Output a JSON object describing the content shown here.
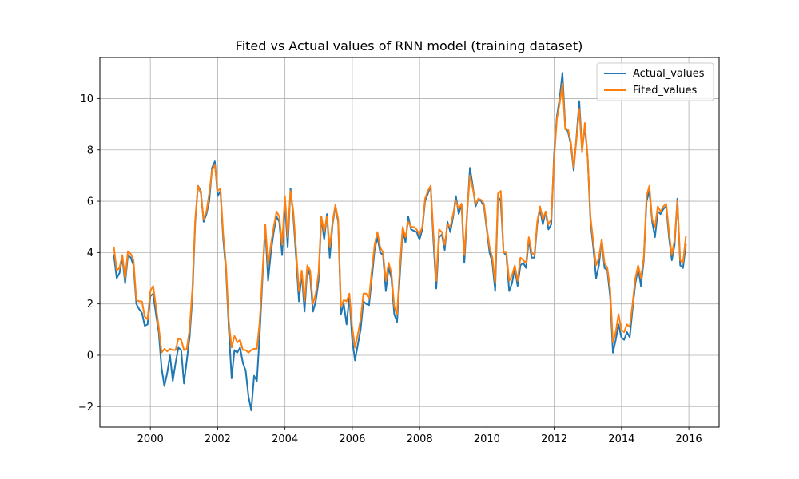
{
  "chart_data": {
    "type": "line",
    "title": "Fited vs Actual values of RNN model (training dataset)",
    "xlabel": "",
    "ylabel": "",
    "xlim": [
      1998.5,
      2016.9
    ],
    "ylim": [
      -2.8,
      11.6
    ],
    "x_ticks": [
      2000,
      2002,
      2004,
      2006,
      2008,
      2010,
      2012,
      2014,
      2016
    ],
    "x_tick_labels": [
      "2000",
      "2002",
      "2004",
      "2006",
      "2008",
      "2010",
      "2012",
      "2014",
      "2016"
    ],
    "y_ticks": [
      -2,
      0,
      2,
      4,
      6,
      8,
      10
    ],
    "y_tick_labels": [
      "−2",
      "0",
      "2",
      "4",
      "6",
      "8",
      "10"
    ],
    "grid": true,
    "legend_position": "top-right",
    "x_start": 1998.917,
    "x_step": 0.0833,
    "series": [
      {
        "name": "Actual_values",
        "color": "#1f77b4",
        "values": [
          3.9,
          3.0,
          3.2,
          3.8,
          2.8,
          3.9,
          3.8,
          3.5,
          2.0,
          1.8,
          1.65,
          1.15,
          1.2,
          2.3,
          2.4,
          1.6,
          0.9,
          -0.5,
          -1.2,
          -0.7,
          0.0,
          -1.0,
          -0.3,
          0.3,
          0.2,
          -1.1,
          -0.2,
          0.7,
          2.3,
          5.2,
          6.6,
          6.4,
          5.2,
          5.5,
          6.0,
          7.3,
          7.55,
          6.2,
          6.4,
          4.5,
          3.3,
          1.0,
          -0.9,
          0.2,
          0.1,
          0.3,
          -0.3,
          -0.6,
          -1.6,
          -2.15,
          -0.8,
          -1.0,
          0.8,
          3.0,
          5.0,
          2.9,
          4.0,
          4.8,
          5.4,
          5.2,
          3.9,
          6.0,
          4.2,
          6.5,
          5.4,
          3.8,
          2.1,
          3.2,
          1.7,
          3.4,
          3.1,
          1.7,
          2.1,
          2.9,
          5.4,
          4.5,
          5.5,
          3.8,
          5.1,
          5.8,
          5.2,
          1.6,
          2.0,
          1.2,
          2.3,
          0.6,
          -0.2,
          0.4,
          1.0,
          2.1,
          2.0,
          1.95,
          3.0,
          4.1,
          4.6,
          4.0,
          3.9,
          2.5,
          3.4,
          3.0,
          1.6,
          1.3,
          3.1,
          4.9,
          4.4,
          5.4,
          4.9,
          4.85,
          4.8,
          4.5,
          4.9,
          6.0,
          6.3,
          6.6,
          4.4,
          2.6,
          4.6,
          4.7,
          4.1,
          5.2,
          4.8,
          5.4,
          6.2,
          5.5,
          5.9,
          3.6,
          5.5,
          7.3,
          6.6,
          5.8,
          6.1,
          6.0,
          5.8,
          4.9,
          4.0,
          3.6,
          2.5,
          6.2,
          6.0,
          4.0,
          3.9,
          2.5,
          2.8,
          3.4,
          2.7,
          3.5,
          3.6,
          3.4,
          4.5,
          3.8,
          3.8,
          5.1,
          5.7,
          5.1,
          5.6,
          4.9,
          5.1,
          7.8,
          9.3,
          10.0,
          11.0,
          8.9,
          8.7,
          8.2,
          7.2,
          8.5,
          9.9,
          8.0,
          8.9,
          7.7,
          5.2,
          4.2,
          3.0,
          3.5,
          4.5,
          3.4,
          3.3,
          2.3,
          0.1,
          0.6,
          1.2,
          0.7,
          0.6,
          0.9,
          0.7,
          1.8,
          2.8,
          3.4,
          2.7,
          3.7,
          6.0,
          6.4,
          5.2,
          4.6,
          5.6,
          5.5,
          5.7,
          5.8,
          4.6,
          3.7,
          4.3,
          6.1,
          3.5,
          3.4,
          4.3
        ]
      },
      {
        "name": "Fited_values",
        "color": "#ff7f0e",
        "values": [
          4.2,
          3.3,
          3.4,
          3.9,
          3.0,
          4.05,
          3.95,
          3.7,
          2.15,
          2.1,
          2.1,
          1.5,
          1.4,
          2.5,
          2.7,
          1.9,
          1.1,
          0.1,
          0.25,
          0.15,
          0.25,
          0.2,
          0.2,
          0.65,
          0.6,
          0.2,
          0.25,
          1.0,
          2.6,
          5.3,
          6.6,
          6.3,
          5.3,
          5.6,
          6.3,
          7.2,
          7.4,
          6.4,
          6.5,
          4.7,
          3.5,
          1.3,
          0.3,
          0.75,
          0.5,
          0.6,
          0.2,
          0.2,
          0.1,
          0.2,
          0.25,
          0.25,
          1.3,
          3.2,
          5.1,
          3.5,
          4.3,
          5.0,
          5.6,
          5.4,
          4.3,
          6.2,
          4.6,
          6.4,
          5.6,
          4.1,
          2.5,
          3.3,
          2.1,
          3.5,
          3.3,
          2.0,
          2.4,
          3.2,
          5.4,
          4.8,
          5.4,
          4.2,
          5.2,
          5.85,
          5.3,
          1.9,
          2.15,
          2.1,
          2.4,
          1.1,
          0.3,
          0.8,
          1.4,
          2.4,
          2.4,
          2.2,
          3.3,
          4.3,
          4.8,
          4.2,
          4.0,
          2.9,
          3.6,
          3.2,
          1.9,
          1.6,
          3.4,
          5.0,
          4.6,
          5.2,
          5.0,
          5.0,
          4.9,
          4.7,
          5.0,
          6.1,
          6.4,
          6.6,
          4.7,
          2.9,
          4.9,
          4.8,
          4.3,
          5.1,
          5.0,
          5.5,
          6.0,
          5.7,
          5.9,
          3.9,
          5.6,
          7.0,
          6.5,
          5.9,
          6.1,
          6.05,
          5.9,
          5.0,
          4.2,
          3.8,
          2.8,
          6.3,
          6.4,
          4.0,
          4.0,
          2.9,
          3.1,
          3.5,
          2.9,
          3.8,
          3.7,
          3.6,
          4.6,
          4.0,
          3.9,
          5.2,
          5.8,
          5.3,
          5.6,
          5.1,
          5.3,
          7.6,
          9.2,
          9.8,
          10.6,
          8.8,
          8.8,
          8.3,
          7.3,
          8.4,
          9.6,
          7.9,
          9.05,
          7.7,
          5.4,
          4.4,
          3.5,
          3.8,
          4.5,
          3.6,
          3.4,
          2.6,
          0.5,
          0.9,
          1.6,
          1.0,
          0.9,
          1.2,
          1.1,
          2.0,
          3.0,
          3.5,
          3.0,
          3.8,
          6.2,
          6.6,
          5.3,
          5.0,
          5.8,
          5.6,
          5.8,
          5.9,
          4.8,
          3.9,
          4.5,
          6.0,
          3.7,
          3.6,
          4.6
        ]
      }
    ]
  }
}
